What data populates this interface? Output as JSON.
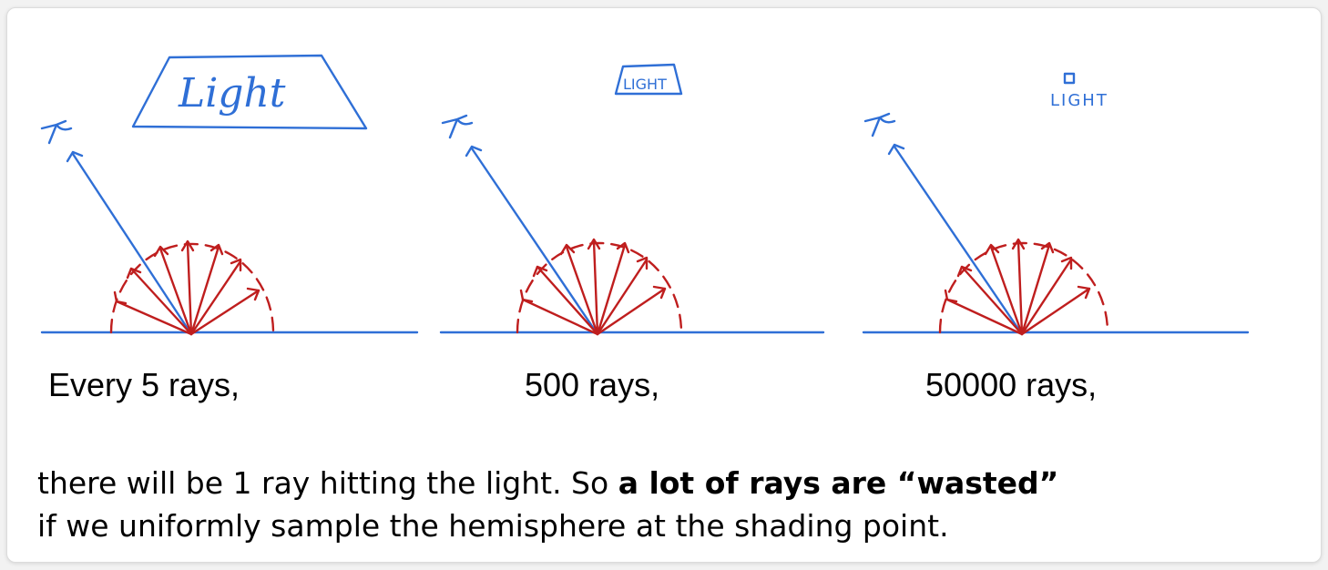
{
  "panels": [
    {
      "id": "panel-1",
      "light_label": "Light",
      "caption": "Every 5 rays,"
    },
    {
      "id": "panel-2",
      "light_label": "LIGHT",
      "caption": "500 rays,"
    },
    {
      "id": "panel-3",
      "light_label": "LIGHT",
      "caption": "50000 rays,"
    }
  ],
  "paragraph": {
    "line1_plain": "there will be 1 ray hitting the light. So ",
    "line1_bold": "a lot of rays are “wasted”",
    "line2": "if we uniformly sample the hemisphere at the shading point."
  },
  "colors": {
    "blue_ink": "#2f6fd6",
    "red_ink": "#bf1e1e",
    "text": "#000000"
  }
}
